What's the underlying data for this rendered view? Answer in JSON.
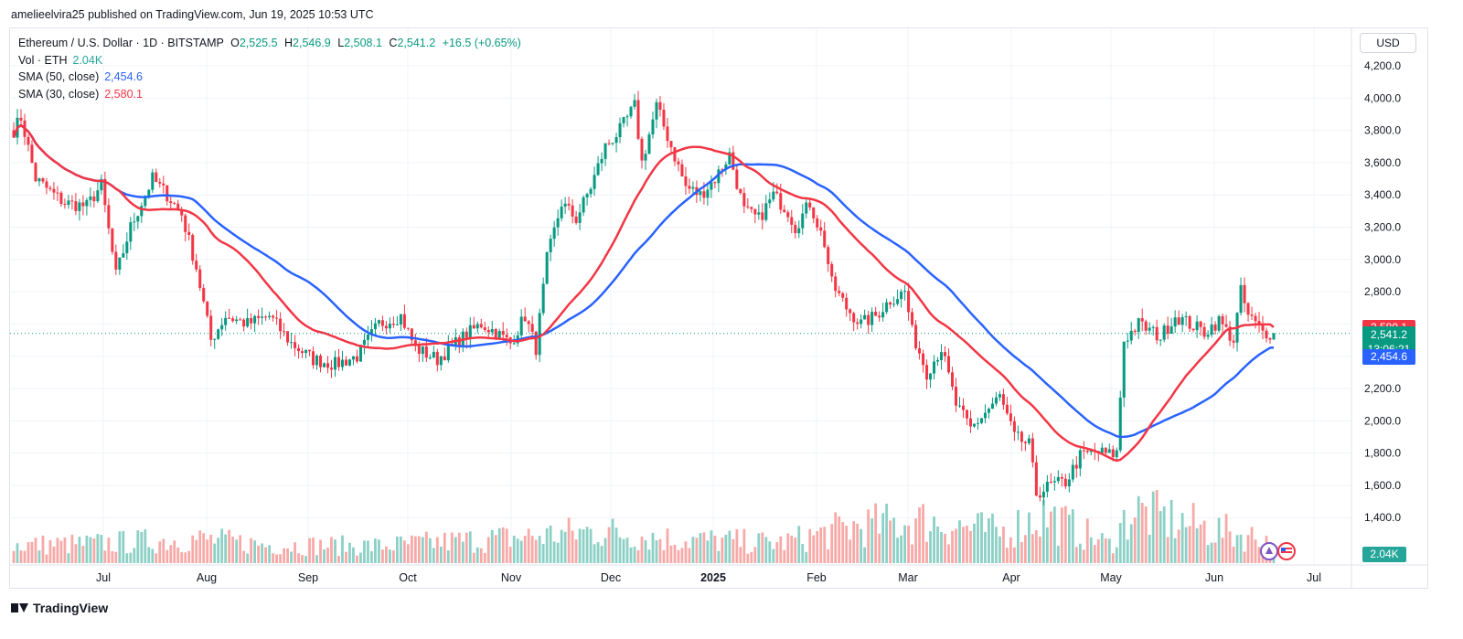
{
  "publisher": "amelieelvira25 published on TradingView.com, Jun 19, 2025 10:53 UTC",
  "legend": {
    "symbol": "Ethereum / U.S. Dollar · 1D · BITSTAMP",
    "o_label": "O",
    "o": "2,525.5",
    "h_label": "H",
    "h": "2,546.9",
    "l_label": "L",
    "l": "2,508.1",
    "c_label": "C",
    "c": "2,541.2",
    "change": "+16.5 (+0.65%)",
    "vol_label": "Vol · ETH",
    "vol_value": "2.04K",
    "sma50_label": "SMA (50, close)",
    "sma50_value": "2,454.6",
    "sma30_label": "SMA (30, close)",
    "sma30_value": "2,580.1"
  },
  "currency_button": "USD",
  "badges": {
    "sma30": "2,580.1",
    "last_price": "2,541.2",
    "countdown": "13:06:21",
    "sma50": "2,454.6",
    "volume": "2.04K"
  },
  "footer_brand": "TradingView",
  "colors": {
    "up": "#089981",
    "down": "#f23645",
    "sma30": "#f23645",
    "sma50": "#2962ff",
    "vol_up": "#8cd0c6",
    "vol_down": "#f7a9a7"
  },
  "chart_data": {
    "type": "candlestick",
    "ylim": [
      1150,
      4300
    ],
    "y_ticks": [
      1400,
      1600,
      1800,
      2000,
      2200,
      2400,
      2600,
      2800,
      3000,
      3200,
      3400,
      3600,
      3800,
      4000,
      4200
    ],
    "y_tick_labels": [
      "1,400.0",
      "1,600.0",
      "1,800.0",
      "2,000.0",
      "2,200.0",
      "2,400.0",
      "2,600.0",
      "2,800.0",
      "3,000.0",
      "3,200.0",
      "3,400.0",
      "3,600.0",
      "3,800.0",
      "4,000.0",
      "4,200.0"
    ],
    "x_labels": [
      "Jul",
      "Aug",
      "Sep",
      "Oct",
      "Nov",
      "Dec",
      "2025",
      "Feb",
      "Mar",
      "Apr",
      "May",
      "Jun",
      "Jul"
    ],
    "bold_x_label": "2025",
    "price_path": [
      [
        0,
        3800
      ],
      [
        2,
        3880
      ],
      [
        6,
        3500
      ],
      [
        10,
        3420
      ],
      [
        14,
        3350
      ],
      [
        20,
        3330
      ],
      [
        24,
        3460
      ],
      [
        28,
        2900
      ],
      [
        32,
        3200
      ],
      [
        38,
        3500
      ],
      [
        42,
        3400
      ],
      [
        46,
        3280
      ],
      [
        50,
        2950
      ],
      [
        54,
        2500
      ],
      [
        58,
        2650
      ],
      [
        64,
        2600
      ],
      [
        70,
        2650
      ],
      [
        76,
        2480
      ],
      [
        82,
        2380
      ],
      [
        88,
        2350
      ],
      [
        94,
        2400
      ],
      [
        100,
        2600
      ],
      [
        106,
        2650
      ],
      [
        110,
        2450
      ],
      [
        116,
        2380
      ],
      [
        122,
        2500
      ],
      [
        128,
        2600
      ],
      [
        132,
        2550
      ],
      [
        136,
        2480
      ],
      [
        140,
        2650
      ],
      [
        143,
        2450
      ],
      [
        146,
        3000
      ],
      [
        150,
        3350
      ],
      [
        154,
        3250
      ],
      [
        158,
        3450
      ],
      [
        162,
        3700
      ],
      [
        166,
        3800
      ],
      [
        170,
        3950
      ],
      [
        172,
        3600
      ],
      [
        176,
        3950
      ],
      [
        180,
        3700
      ],
      [
        184,
        3450
      ],
      [
        188,
        3400
      ],
      [
        192,
        3500
      ],
      [
        196,
        3650
      ],
      [
        200,
        3300
      ],
      [
        204,
        3250
      ],
      [
        208,
        3400
      ],
      [
        212,
        3300
      ],
      [
        214,
        3200
      ],
      [
        218,
        3350
      ],
      [
        222,
        3100
      ],
      [
        224,
        2850
      ],
      [
        228,
        2700
      ],
      [
        232,
        2600
      ],
      [
        236,
        2650
      ],
      [
        240,
        2750
      ],
      [
        244,
        2800
      ],
      [
        246,
        2550
      ],
      [
        250,
        2300
      ],
      [
        254,
        2450
      ],
      [
        258,
        2100
      ],
      [
        262,
        1950
      ],
      [
        266,
        2050
      ],
      [
        270,
        2150
      ],
      [
        274,
        1900
      ],
      [
        278,
        1850
      ],
      [
        280,
        1550
      ],
      [
        284,
        1600
      ],
      [
        288,
        1620
      ],
      [
        292,
        1780
      ],
      [
        296,
        1810
      ],
      [
        300,
        1790
      ],
      [
        302,
        1800
      ],
      [
        304,
        2500
      ],
      [
        308,
        2600
      ],
      [
        314,
        2520
      ],
      [
        318,
        2650
      ],
      [
        322,
        2600
      ],
      [
        326,
        2550
      ],
      [
        330,
        2620
      ],
      [
        334,
        2500
      ],
      [
        336,
        2800
      ],
      [
        338,
        2650
      ],
      [
        342,
        2550
      ],
      [
        345,
        2541
      ]
    ],
    "volume_path": [
      [
        0,
        0.9
      ],
      [
        20,
        0.95
      ],
      [
        50,
        1.2
      ],
      [
        70,
        0.9
      ],
      [
        100,
        0.85
      ],
      [
        140,
        1.3
      ],
      [
        160,
        1.6
      ],
      [
        180,
        1.2
      ],
      [
        210,
        1.0
      ],
      [
        230,
        1.8
      ],
      [
        250,
        2.1
      ],
      [
        270,
        1.5
      ],
      [
        282,
        2.4
      ],
      [
        300,
        0.9
      ],
      [
        306,
        2.6
      ],
      [
        330,
        1.6
      ],
      [
        345,
        1.1
      ]
    ],
    "sma30_last": 2580.1,
    "sma50_last": 2454.6,
    "last_close": 2541.2,
    "sma_periods": [
      30,
      50
    ]
  }
}
